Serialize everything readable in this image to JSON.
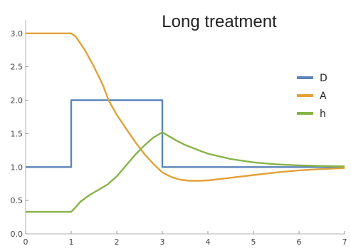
{
  "chart_data": {
    "type": "line",
    "title": "Long treatment",
    "xlabel": "",
    "ylabel": "",
    "xlim": [
      0,
      7
    ],
    "ylim": [
      0,
      3.2
    ],
    "x_ticks": [
      "0",
      "1",
      "2",
      "3",
      "4",
      "5",
      "6",
      "7"
    ],
    "y_ticks": [
      "0.0",
      "0.5",
      "1.0",
      "1.5",
      "2.0",
      "2.5",
      "3.0"
    ],
    "grid": false,
    "legend_position": "right",
    "series": [
      {
        "name": "D",
        "color": "#5b84b9",
        "points": [
          [
            0,
            1
          ],
          [
            1,
            1
          ],
          [
            1,
            2
          ],
          [
            3,
            2
          ],
          [
            3,
            1
          ],
          [
            7,
            1
          ]
        ]
      },
      {
        "name": "A",
        "color": "#e2a13a",
        "points": [
          [
            0,
            3
          ],
          [
            1,
            3
          ],
          [
            1.1,
            2.95
          ],
          [
            1.3,
            2.75
          ],
          [
            1.5,
            2.5
          ],
          [
            1.7,
            2.22
          ],
          [
            1.82,
            2.0
          ],
          [
            2.0,
            1.78
          ],
          [
            2.2,
            1.58
          ],
          [
            2.4,
            1.38
          ],
          [
            2.6,
            1.2
          ],
          [
            2.8,
            1.05
          ],
          [
            3.0,
            0.92
          ],
          [
            3.2,
            0.85
          ],
          [
            3.4,
            0.81
          ],
          [
            3.6,
            0.795
          ],
          [
            3.8,
            0.795
          ],
          [
            4.0,
            0.8
          ],
          [
            4.5,
            0.84
          ],
          [
            5.0,
            0.88
          ],
          [
            5.5,
            0.92
          ],
          [
            6.0,
            0.95
          ],
          [
            6.5,
            0.97
          ],
          [
            7.0,
            0.985
          ]
        ]
      },
      {
        "name": "h",
        "color": "#87b347",
        "points": [
          [
            0,
            0.33
          ],
          [
            1,
            0.33
          ],
          [
            1.1,
            0.4
          ],
          [
            1.2,
            0.48
          ],
          [
            1.4,
            0.58
          ],
          [
            1.6,
            0.66
          ],
          [
            1.8,
            0.74
          ],
          [
            2.0,
            0.86
          ],
          [
            2.2,
            1.02
          ],
          [
            2.4,
            1.18
          ],
          [
            2.6,
            1.32
          ],
          [
            2.8,
            1.44
          ],
          [
            3.0,
            1.52
          ],
          [
            3.1,
            1.48
          ],
          [
            3.3,
            1.4
          ],
          [
            3.5,
            1.33
          ],
          [
            3.8,
            1.25
          ],
          [
            4.0,
            1.2
          ],
          [
            4.5,
            1.12
          ],
          [
            5.0,
            1.07
          ],
          [
            5.5,
            1.04
          ],
          [
            6.0,
            1.025
          ],
          [
            6.5,
            1.015
          ],
          [
            7.0,
            1.01
          ]
        ]
      }
    ]
  }
}
